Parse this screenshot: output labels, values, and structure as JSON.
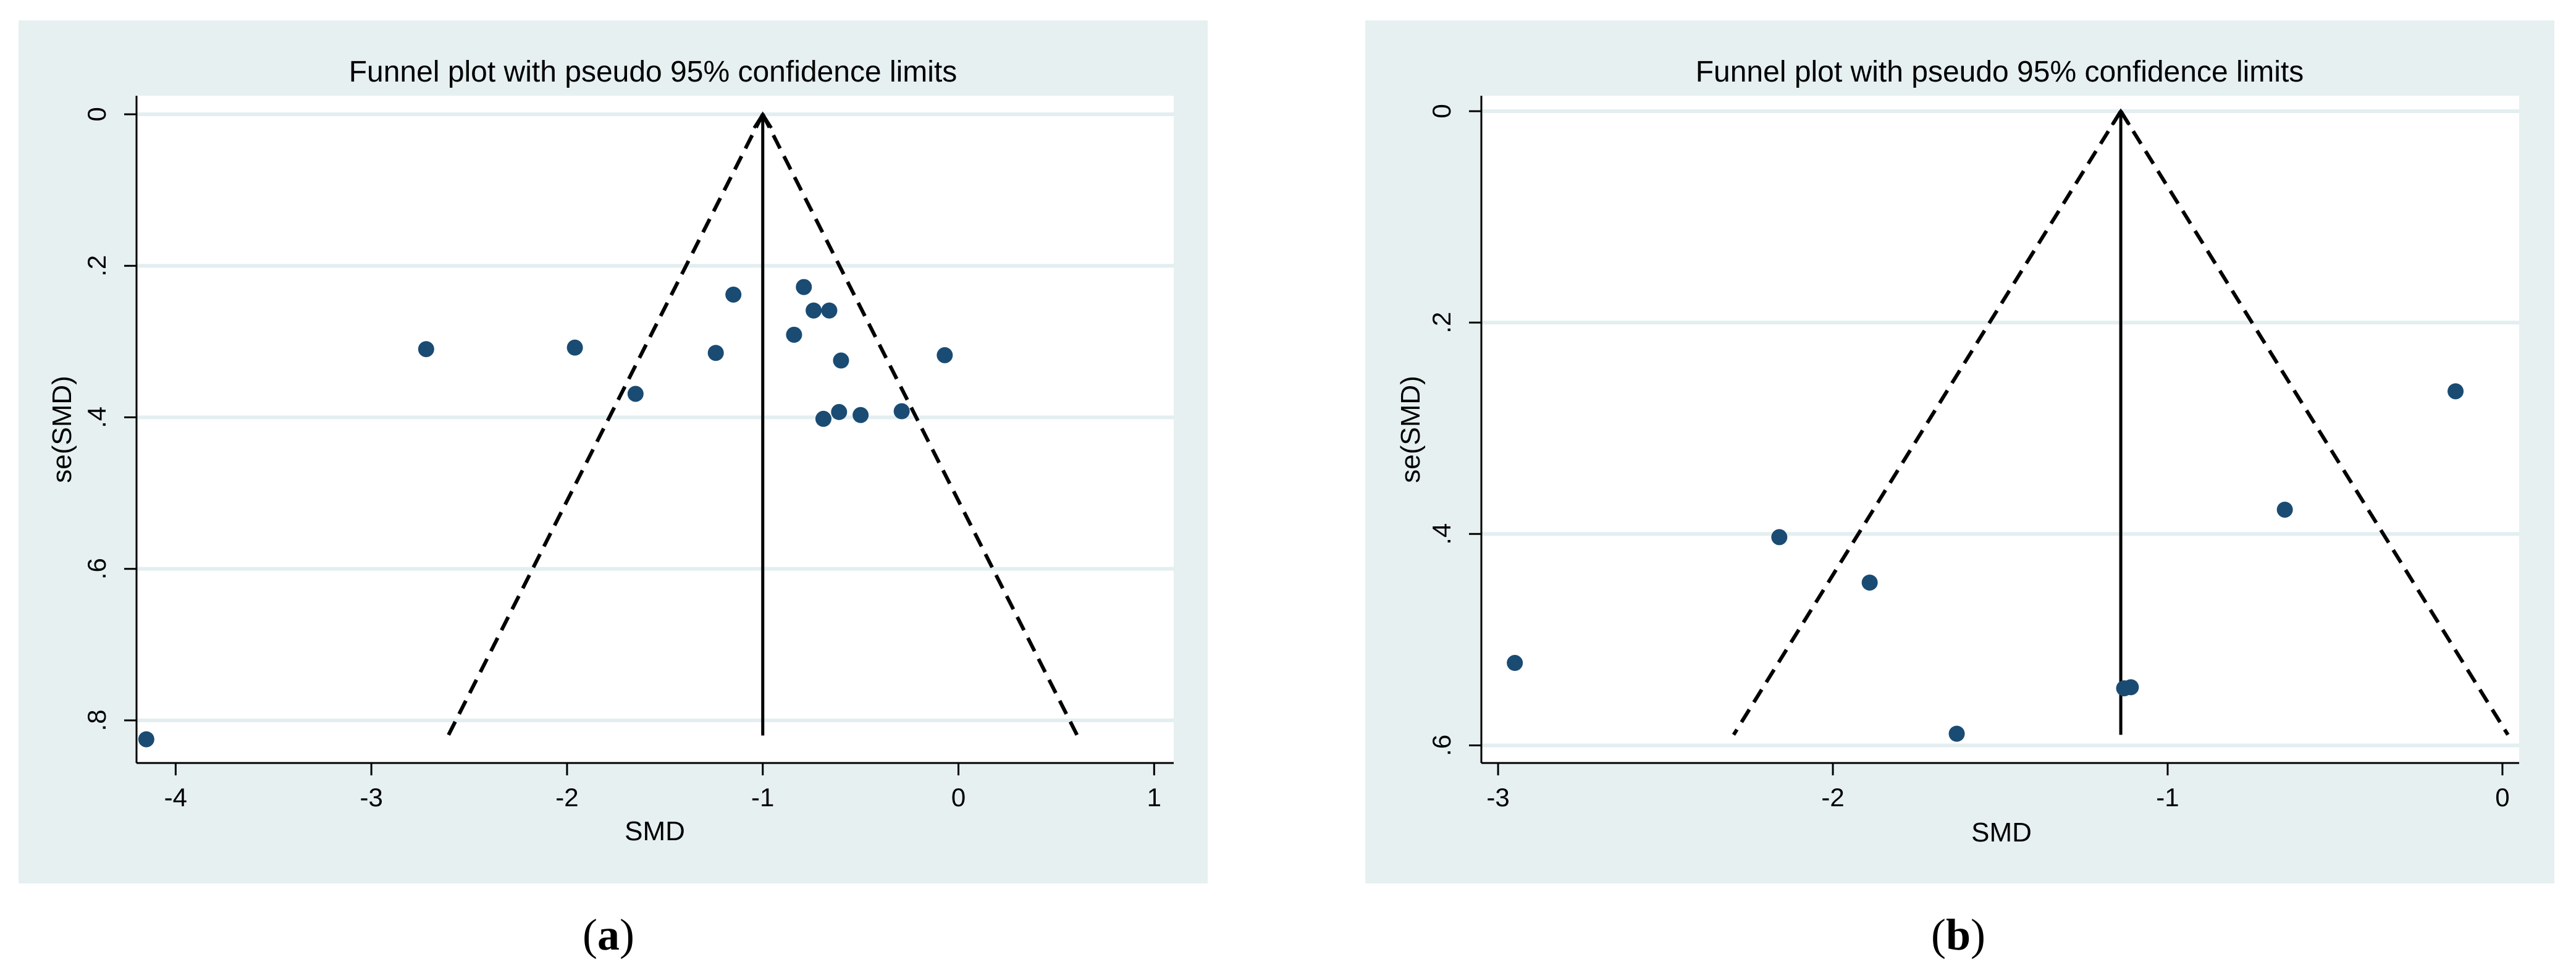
{
  "chart_data": [
    {
      "type": "scatter",
      "title": "Funnel plot with pseudo 95% confidence limits",
      "xlabel": "SMD",
      "ylabel": "se(SMD)",
      "caption": {
        "open": "(",
        "letter": "a",
        "close": ")"
      },
      "xlim": [
        -4.2,
        1.1
      ],
      "ylim": [
        0,
        0.84
      ],
      "y_reversed": true,
      "xticks": [
        -4,
        -3,
        -2,
        -1,
        0,
        1
      ],
      "yticks": [
        0,
        0.2,
        0.4,
        0.6,
        0.8
      ],
      "xtick_labels": [
        "-4",
        "-3",
        "-2",
        "-1",
        "0",
        "1"
      ],
      "ytick_labels": [
        "0",
        ".2",
        ".4",
        ".6",
        ".8"
      ],
      "pooled_effect": -1.0,
      "funnel_max_se": 0.82,
      "points": [
        {
          "x": -4.15,
          "y": 0.825
        },
        {
          "x": -2.72,
          "y": 0.31
        },
        {
          "x": -1.96,
          "y": 0.308
        },
        {
          "x": -1.65,
          "y": 0.369
        },
        {
          "x": -1.24,
          "y": 0.315
        },
        {
          "x": -1.15,
          "y": 0.238
        },
        {
          "x": -0.84,
          "y": 0.291
        },
        {
          "x": -0.79,
          "y": 0.228
        },
        {
          "x": -0.74,
          "y": 0.259
        },
        {
          "x": -0.66,
          "y": 0.259
        },
        {
          "x": -0.6,
          "y": 0.325
        },
        {
          "x": -0.61,
          "y": 0.393
        },
        {
          "x": -0.69,
          "y": 0.402
        },
        {
          "x": -0.5,
          "y": 0.397
        },
        {
          "x": -0.29,
          "y": 0.392
        },
        {
          "x": -0.07,
          "y": 0.318
        }
      ]
    },
    {
      "type": "scatter",
      "title": "Funnel plot with pseudo 95% confidence limits",
      "xlabel": "SMD",
      "ylabel": "se(SMD)",
      "caption": {
        "open": "(",
        "letter": "b",
        "close": ")"
      },
      "xlim": [
        -3.05,
        0.05
      ],
      "ylim": [
        0,
        0.605
      ],
      "y_reversed": true,
      "xticks": [
        -3,
        -2,
        -1,
        0
      ],
      "yticks": [
        0,
        0.2,
        0.4,
        0.6
      ],
      "xtick_labels": [
        "-3",
        "-2",
        "-1",
        "0"
      ],
      "ytick_labels": [
        "0",
        ".2",
        ".4",
        ".6"
      ],
      "pooled_effect": -1.14,
      "funnel_max_se": 0.59,
      "points": [
        {
          "x": -2.95,
          "y": 0.522
        },
        {
          "x": -2.16,
          "y": 0.403
        },
        {
          "x": -1.89,
          "y": 0.446
        },
        {
          "x": -1.63,
          "y": 0.589
        },
        {
          "x": -1.13,
          "y": 0.546
        },
        {
          "x": -1.11,
          "y": 0.545
        },
        {
          "x": -0.65,
          "y": 0.377
        },
        {
          "x": -0.14,
          "y": 0.265
        }
      ]
    }
  ]
}
